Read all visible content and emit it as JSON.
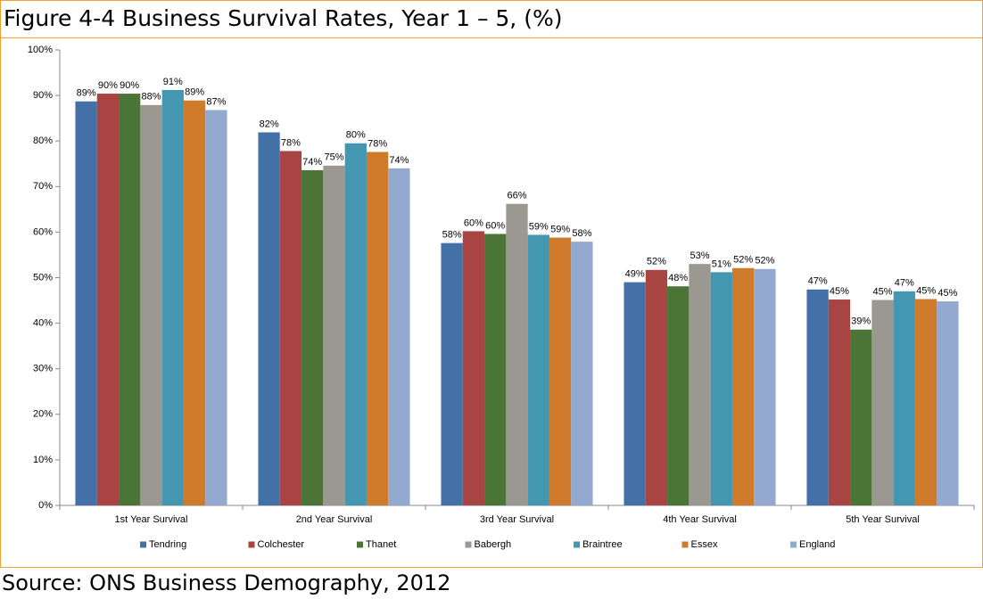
{
  "chart_data": {
    "type": "bar",
    "title": "Figure 4-4 Business Survival Rates, Year 1 – 5, (%)",
    "source": "Source: ONS Business Demography, 2012",
    "categories": [
      "1st Year Survival",
      "2nd Year Survival",
      "3rd Year Survival",
      "4th Year Survival",
      "5th Year Survival"
    ],
    "ylim": [
      0,
      100
    ],
    "yticks": [
      {
        "value": 0,
        "label": "0%"
      },
      {
        "value": 10,
        "label": "10%"
      },
      {
        "value": 20,
        "label": "20%"
      },
      {
        "value": 30,
        "label": "30%"
      },
      {
        "value": 40,
        "label": "40%"
      },
      {
        "value": 50,
        "label": "50%"
      },
      {
        "value": 60,
        "label": "60%"
      },
      {
        "value": 70,
        "label": "70%"
      },
      {
        "value": 80,
        "label": "80%"
      },
      {
        "value": 90,
        "label": "90%"
      },
      {
        "value": 100,
        "label": "100%"
      }
    ],
    "legend": "bottom",
    "series": [
      {
        "name": "Tendring",
        "color": "#4470a8",
        "values": [
          88.7,
          81.9,
          57.6,
          49.0,
          47.4
        ],
        "value_labels": [
          "89%",
          "82%",
          "58%",
          "49%",
          "47%"
        ]
      },
      {
        "name": "Colchester",
        "color": "#a84543",
        "values": [
          90.4,
          77.8,
          60.2,
          51.7,
          45.2
        ],
        "value_labels": [
          "90%",
          "78%",
          "60%",
          "52%",
          "45%"
        ]
      },
      {
        "name": "Thanet",
        "color": "#4a7537",
        "values": [
          90.4,
          73.6,
          59.6,
          48.1,
          38.6
        ],
        "value_labels": [
          "90%",
          "74%",
          "60%",
          "48%",
          "39%"
        ]
      },
      {
        "name": "Babergh",
        "color": "#9b9791",
        "values": [
          87.9,
          74.6,
          66.2,
          53.0,
          45.1
        ],
        "value_labels": [
          "88%",
          "75%",
          "66%",
          "53%",
          "45%"
        ]
      },
      {
        "name": "Braintree",
        "color": "#4497b0",
        "values": [
          91.2,
          79.5,
          59.4,
          51.2,
          47.0
        ],
        "value_labels": [
          "91%",
          "80%",
          "59%",
          "51%",
          "47%"
        ]
      },
      {
        "name": "Essex",
        "color": "#d07a2c",
        "values": [
          88.9,
          77.6,
          58.8,
          52.1,
          45.3
        ],
        "value_labels": [
          "89%",
          "78%",
          "59%",
          "52%",
          "45%"
        ]
      },
      {
        "name": "England",
        "color": "#93a9cf",
        "values": [
          86.8,
          74.0,
          57.9,
          51.9,
          44.8
        ],
        "value_labels": [
          "87%",
          "74%",
          "58%",
          "52%",
          "45%"
        ]
      }
    ]
  }
}
